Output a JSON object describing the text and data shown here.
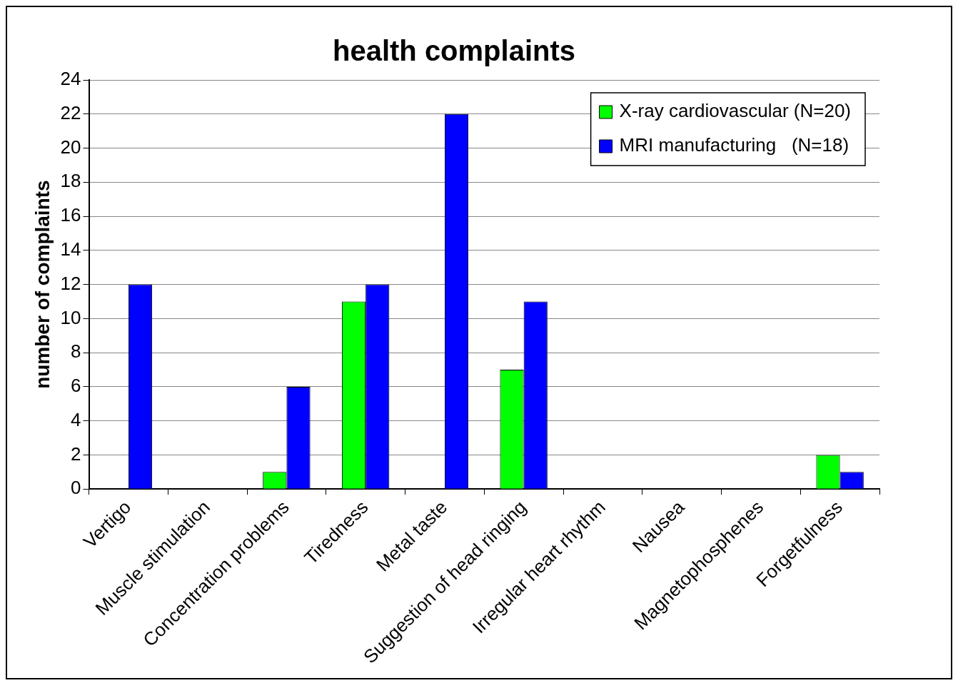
{
  "chart_data": {
    "type": "bar",
    "title": "health complaints",
    "ylabel": "number of complaints",
    "categories": [
      "Vertigo",
      "Muscle stimulation",
      "Concentration problems",
      "Tiredness",
      "Metal taste",
      "Suggestion of head ringing",
      "Irregular heart rhythm",
      "Nausea",
      "Magnetophosphenes",
      "Forgetfulness"
    ],
    "series": [
      {
        "name": "X-ray cardiovascular (N=20)",
        "color": "#00ff00",
        "values": [
          0,
          0,
          1,
          11,
          0,
          7,
          0,
          0,
          0,
          2
        ]
      },
      {
        "name": "MRI manufacturing   (N=18)",
        "color": "#0000ff",
        "values": [
          12,
          0,
          6,
          12,
          22,
          11,
          0,
          0,
          0,
          1
        ]
      }
    ],
    "ylim": [
      0,
      24
    ],
    "yticks": [
      0,
      2,
      4,
      6,
      8,
      10,
      12,
      14,
      16,
      18,
      20,
      22,
      24
    ],
    "grid": "y",
    "legend": "top right"
  }
}
